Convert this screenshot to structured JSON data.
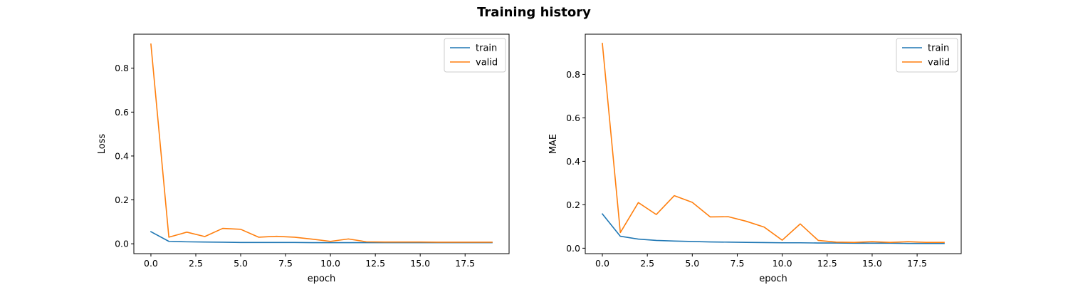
{
  "figure": {
    "title": "Training history"
  },
  "chart_data": [
    {
      "type": "line",
      "title": "",
      "xlabel": "epoch",
      "ylabel": "Loss",
      "xlim": [
        -0.95,
        19.95
      ],
      "ylim": [
        -0.045,
        0.955
      ],
      "xticks": [
        0.0,
        2.5,
        5.0,
        7.5,
        10.0,
        12.5,
        15.0,
        17.5
      ],
      "xtick_labels": [
        "0.0",
        "2.5",
        "5.0",
        "7.5",
        "10.0",
        "12.5",
        "15.0",
        "17.5"
      ],
      "yticks": [
        0.0,
        0.2,
        0.4,
        0.6,
        0.8
      ],
      "ytick_labels": [
        "0.0",
        "0.2",
        "0.4",
        "0.6",
        "0.8"
      ],
      "grid": false,
      "legend": "top-right",
      "x": [
        0,
        1,
        2,
        3,
        4,
        5,
        6,
        7,
        8,
        9,
        10,
        11,
        12,
        13,
        14,
        15,
        16,
        17,
        18,
        19
      ],
      "series": [
        {
          "name": "train",
          "color": "#1f77b4",
          "values": [
            0.055,
            0.011,
            0.009,
            0.008,
            0.007,
            0.006,
            0.006,
            0.006,
            0.006,
            0.005,
            0.005,
            0.005,
            0.005,
            0.005,
            0.005,
            0.005,
            0.005,
            0.005,
            0.005,
            0.005
          ]
        },
        {
          "name": "valid",
          "color": "#ff7f0e",
          "values": [
            0.91,
            0.03,
            0.053,
            0.033,
            0.07,
            0.066,
            0.03,
            0.034,
            0.03,
            0.021,
            0.011,
            0.022,
            0.009,
            0.008,
            0.008,
            0.008,
            0.007,
            0.007,
            0.007,
            0.007
          ]
        }
      ]
    },
    {
      "type": "line",
      "title": "",
      "xlabel": "epoch",
      "ylabel": "MAE",
      "xlim": [
        -0.95,
        19.95
      ],
      "ylim": [
        -0.025,
        0.985
      ],
      "xticks": [
        0.0,
        2.5,
        5.0,
        7.5,
        10.0,
        12.5,
        15.0,
        17.5
      ],
      "xtick_labels": [
        "0.0",
        "2.5",
        "5.0",
        "7.5",
        "10.0",
        "12.5",
        "15.0",
        "17.5"
      ],
      "yticks": [
        0.0,
        0.2,
        0.4,
        0.6,
        0.8
      ],
      "ytick_labels": [
        "0.0",
        "0.2",
        "0.4",
        "0.6",
        "0.8"
      ],
      "grid": false,
      "legend": "top-right",
      "x": [
        0,
        1,
        2,
        3,
        4,
        5,
        6,
        7,
        8,
        9,
        10,
        11,
        12,
        13,
        14,
        15,
        16,
        17,
        18,
        19
      ],
      "series": [
        {
          "name": "train",
          "color": "#1f77b4",
          "values": [
            0.158,
            0.055,
            0.042,
            0.036,
            0.033,
            0.031,
            0.029,
            0.028,
            0.027,
            0.026,
            0.025,
            0.025,
            0.024,
            0.024,
            0.023,
            0.023,
            0.023,
            0.022,
            0.022,
            0.022
          ]
        },
        {
          "name": "valid",
          "color": "#ff7f0e",
          "values": [
            0.943,
            0.072,
            0.21,
            0.155,
            0.242,
            0.211,
            0.144,
            0.145,
            0.124,
            0.097,
            0.037,
            0.112,
            0.036,
            0.028,
            0.027,
            0.03,
            0.027,
            0.03,
            0.027,
            0.027
          ]
        }
      ]
    }
  ]
}
